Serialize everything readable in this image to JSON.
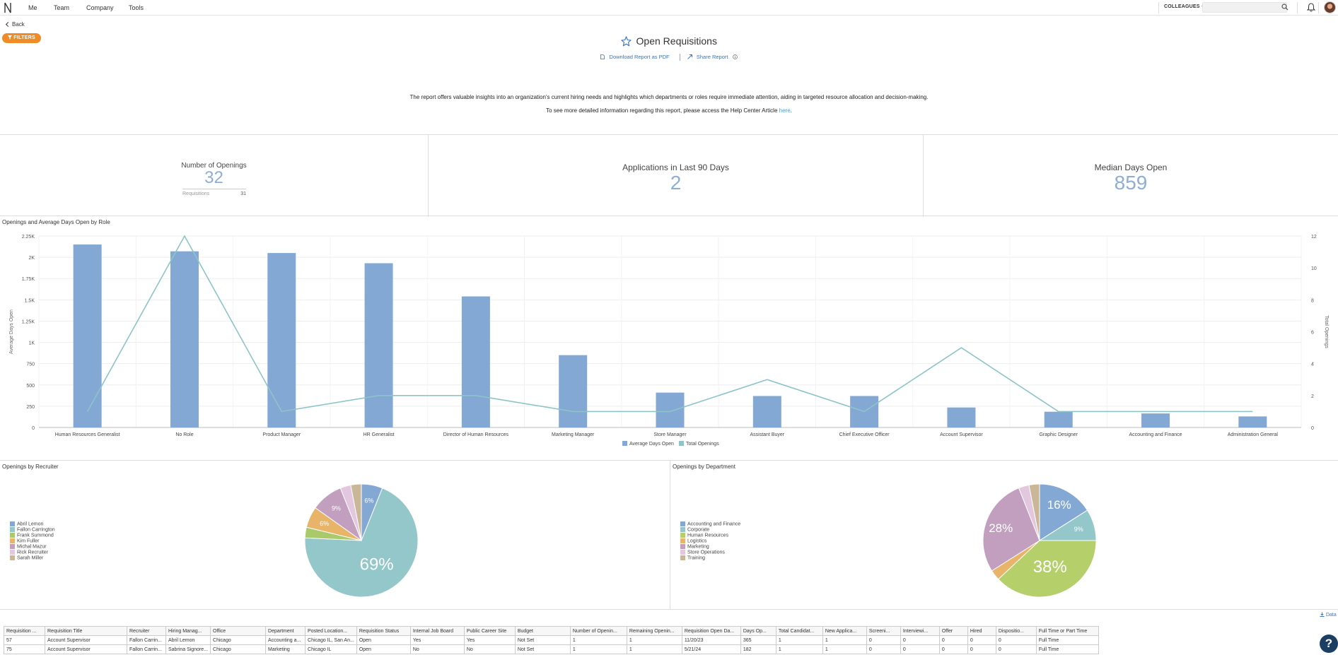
{
  "nav": {
    "items": [
      "Me",
      "Team",
      "Company",
      "Tools"
    ],
    "colleagues_label": "COLLEAGUES",
    "search_placeholder": ""
  },
  "back_label": "Back",
  "filters_label": "FILTERS",
  "page_title": "Open Requisitions",
  "report_links": {
    "download": "Download Report as PDF",
    "share": "Share Report"
  },
  "description": "The report offers valuable insights into an organization's current hiring needs and highlights which departments or roles require immediate attention, aiding in targeted resource allocation and decision-making.",
  "help_text": {
    "before": "To see more detailed information regarding this report, please access the Help Center Article ",
    "link": "here",
    "after": "."
  },
  "kpis": {
    "openings": {
      "label": "Number of Openings",
      "value": "32",
      "sub_label": "Requisitions",
      "sub_value": "31"
    },
    "applications": {
      "label": "Applications in Last 90 Days",
      "value": "2"
    },
    "median": {
      "label": "Median Days Open",
      "value": "859"
    }
  },
  "colors": {
    "bar": "#84a8d4",
    "line": "#8cc4c8",
    "accent": "#f08c28",
    "kpi": "#8faed4"
  },
  "chart_data": [
    {
      "type": "bar",
      "title": "Openings and Average Days Open by Role",
      "ylabel": "Average Days Open",
      "y2label": "Total Openings",
      "ylim": [
        0,
        2250
      ],
      "y2lim": [
        0,
        12
      ],
      "yticks": [
        "0",
        "250",
        "500",
        "750",
        "1K",
        "1.25K",
        "1.5K",
        "1.75K",
        "2K",
        "2.25K"
      ],
      "y2ticks": [
        "0",
        "2",
        "4",
        "6",
        "8",
        "10",
        "12"
      ],
      "categories": [
        "Human Resources Generalist",
        "No Role",
        "Product Manager",
        "HR Generalist",
        "Director of Human Resources",
        "Marketing Manager",
        "Store Manager",
        "Assistant Buyer",
        "Chief Executive Officer",
        "Account Supervisor",
        "Graphic Designer",
        "Accounting and Finance",
        "Administration General"
      ],
      "series": [
        {
          "name": "Average Days Open",
          "kind": "bar",
          "values": [
            2150,
            2070,
            2050,
            1930,
            1540,
            850,
            410,
            370,
            370,
            235,
            185,
            165,
            130
          ]
        },
        {
          "name": "Total Openings",
          "kind": "line",
          "axis": "right",
          "values": [
            1,
            12,
            1,
            2,
            2,
            1,
            1,
            3,
            1,
            5,
            1,
            1,
            1
          ]
        }
      ],
      "legend": "bottom"
    },
    {
      "type": "pie",
      "title": "Openings by Recruiter",
      "labels": [
        "Abril Lemon",
        "Fallon Carrington",
        "Frank Summond",
        "Kim Fuller",
        "Michal Mazur",
        "Rick Recruiter",
        "Sarah Miller"
      ],
      "values": [
        6,
        69,
        3,
        6,
        9,
        3,
        3
      ],
      "colors": [
        "#84a8d4",
        "#94c7c9",
        "#a9c96a",
        "#e8b46a",
        "#c29fbe",
        "#e3c7df",
        "#c9b797"
      ],
      "slice_labels": [
        "6%",
        "69%",
        "",
        "6%",
        "9%",
        "",
        ""
      ],
      "legend": "left"
    },
    {
      "type": "pie",
      "title": "Openings by Department",
      "labels": [
        "Accounting and Finance",
        "Corporate",
        "Human Resources",
        "Logistics",
        "Marketing",
        "Store Operations",
        "Training"
      ],
      "values": [
        16,
        9,
        38,
        3,
        28,
        3,
        3
      ],
      "colors": [
        "#84a8d4",
        "#94c7c9",
        "#b5cf6b",
        "#e8b46a",
        "#c29fbe",
        "#e3c7df",
        "#c9b797"
      ],
      "slice_labels": [
        "16%",
        "9%",
        "38%",
        "",
        "28%",
        "",
        ""
      ],
      "legend": "left"
    }
  ],
  "data_link": "Data",
  "table": {
    "headers": [
      "Requisition ...",
      "Requisition Title",
      "Recruiter",
      "Hiring Manag...",
      "Office",
      "Department",
      "Posted Location...",
      "Requisition Status",
      "Internal Job Board",
      "Public Career Site",
      "Budget",
      "Number of Openin...",
      "Remaining Openin...",
      "Requisition Open Da...",
      "Days Op...",
      "Total Candidat...",
      "New Applica...",
      "Screeni...",
      "Interviewi...",
      "Offer",
      "Hired",
      "Dispositio...",
      "Full Time or Part Time"
    ],
    "rows": [
      [
        "57",
        "Account Supervisor",
        "Fallon Carrin...",
        "Abril Lemon",
        "Chicago",
        "Accounting a...",
        "Chicago IL, San An...",
        "Open",
        "Yes",
        "Yes",
        "Not Set",
        "1",
        "1",
        "11/20/23",
        "365",
        "1",
        "1",
        "0",
        "0",
        "0",
        "0",
        "0",
        "Full Time"
      ],
      [
        "75",
        "Account Supervisor",
        "Fallon Carrin...",
        "Sabrina Signore...",
        "Chicago",
        "Marketing",
        "Chicago IL",
        "Open",
        "No",
        "No",
        "Not Set",
        "1",
        "1",
        "5/21/24",
        "182",
        "1",
        "1",
        "0",
        "0",
        "0",
        "0",
        "0",
        "Full Time"
      ]
    ]
  }
}
